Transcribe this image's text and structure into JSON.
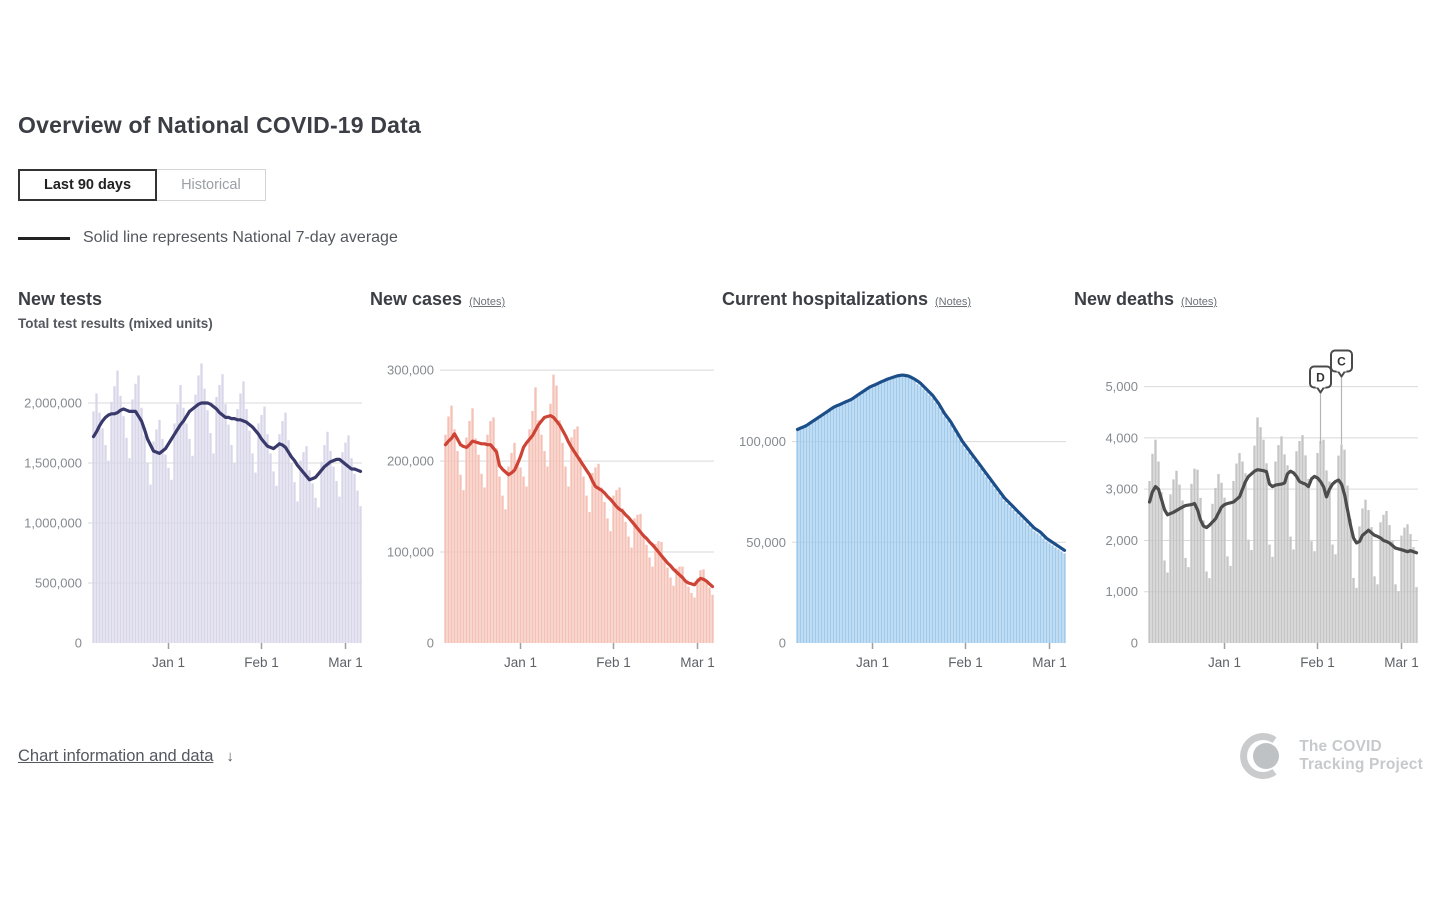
{
  "page": {
    "title": "Overview of National COVID-19 Data"
  },
  "tabs": [
    {
      "label": "Last 90 days",
      "active": true
    },
    {
      "label": "Historical",
      "active": false
    }
  ],
  "legend": {
    "text": "Solid line represents National 7-day average"
  },
  "footer": {
    "link_label": "Chart information and data",
    "link_arrow": "↓",
    "logo_line1": "The COVID",
    "logo_line2": "Tracking Project"
  },
  "colors": {
    "title_text": "#3b3e44",
    "muted_text": "#54585e",
    "axis_label": "#868b90",
    "x_label": "#5d6268",
    "gridline": "#d9d9d9",
    "tests_bar": "#d8d7e9",
    "tests_line": "#39396b",
    "cases_bar": "#f5c1b7",
    "cases_line": "#cd4335",
    "hosp_bar": "#a1cbec",
    "hosp_line": "#1c4e8a",
    "deaths_bar": "#c5c5c5",
    "deaths_line": "#4c4c4c"
  },
  "chart_data": [
    {
      "type": "bar+line",
      "title": "New tests",
      "subtitle": "Total test results (mixed units)",
      "value_scale": "millions",
      "ylim": [
        0,
        2.35
      ],
      "y_ticks": [
        {
          "value": 0,
          "label": "0"
        },
        {
          "value": 0.5,
          "label": "500,000"
        },
        {
          "value": 1.0,
          "label": "1,000,000"
        },
        {
          "value": 1.5,
          "label": "1,500,000"
        },
        {
          "value": 2.0,
          "label": "2,000,000"
        }
      ],
      "x_ticks": [
        {
          "day": 25,
          "label": "Jan 1"
        },
        {
          "day": 56,
          "label": "Feb 1"
        },
        {
          "day": 84,
          "label": "Mar 1"
        }
      ],
      "bar_color": "#d8d7e9",
      "line_color": "#39396b",
      "series": {
        "daily_bars": [
          1.93,
          2.08,
          1.92,
          1.79,
          1.65,
          1.52,
          2.01,
          2.14,
          2.27,
          2.06,
          1.89,
          1.71,
          1.54,
          2.03,
          2.16,
          2.23,
          1.96,
          1.73,
          1.5,
          1.32,
          1.68,
          1.78,
          1.86,
          1.7,
          1.57,
          1.46,
          1.36,
          1.83,
          1.99,
          2.15,
          1.96,
          1.83,
          1.7,
          1.56,
          2.07,
          2.23,
          2.33,
          2.12,
          1.94,
          1.75,
          1.58,
          2.05,
          2.15,
          2.24,
          1.99,
          1.82,
          1.65,
          1.5,
          1.95,
          2.08,
          2.18,
          1.95,
          1.77,
          1.58,
          1.42,
          1.83,
          1.9,
          1.97,
          1.74,
          1.58,
          1.43,
          1.31,
          1.74,
          1.85,
          1.92,
          1.69,
          1.5,
          1.34,
          1.18,
          1.52,
          1.59,
          1.64,
          1.44,
          1.33,
          1.21,
          1.13,
          1.51,
          1.65,
          1.76,
          1.6,
          1.47,
          1.35,
          1.22,
          1.59,
          1.67,
          1.73,
          1.54,
          1.41,
          1.27,
          1.14
        ],
        "avg_line": [
          1.72,
          1.76,
          1.81,
          1.85,
          1.88,
          1.9,
          1.91,
          1.91,
          1.92,
          1.94,
          1.95,
          1.94,
          1.93,
          1.93,
          1.93,
          1.89,
          1.85,
          1.78,
          1.7,
          1.65,
          1.6,
          1.59,
          1.58,
          1.6,
          1.62,
          1.66,
          1.7,
          1.74,
          1.78,
          1.82,
          1.85,
          1.89,
          1.93,
          1.95,
          1.97,
          1.99,
          2.0,
          2.0,
          2.0,
          1.99,
          1.97,
          1.95,
          1.92,
          1.9,
          1.88,
          1.88,
          1.87,
          1.87,
          1.86,
          1.86,
          1.85,
          1.84,
          1.82,
          1.8,
          1.77,
          1.74,
          1.7,
          1.67,
          1.64,
          1.63,
          1.62,
          1.64,
          1.66,
          1.65,
          1.63,
          1.59,
          1.55,
          1.52,
          1.48,
          1.45,
          1.42,
          1.39,
          1.36,
          1.37,
          1.38,
          1.41,
          1.44,
          1.47,
          1.49,
          1.51,
          1.52,
          1.53,
          1.53,
          1.51,
          1.49,
          1.47,
          1.45,
          1.45,
          1.44,
          1.43
        ]
      },
      "markers": []
    },
    {
      "type": "bar+line",
      "title": "New cases",
      "notes_label": "(Notes)",
      "value_scale": "thousands",
      "ylim": [
        0,
        310
      ],
      "y_ticks": [
        {
          "value": 0,
          "label": "0"
        },
        {
          "value": 100,
          "label": "100,000"
        },
        {
          "value": 200,
          "label": "200,000"
        },
        {
          "value": 300,
          "label": "300,000"
        }
      ],
      "x_ticks": [
        {
          "day": 25,
          "label": "Jan 1"
        },
        {
          "day": 56,
          "label": "Feb 1"
        },
        {
          "day": 84,
          "label": "Mar 1"
        }
      ],
      "bar_color": "#f5c1b7",
      "line_color": "#cd4335",
      "series": {
        "daily_bars": [
          229,
          249,
          261,
          235,
          211,
          185,
          168,
          226,
          244,
          258,
          225,
          207,
          186,
          171,
          229,
          244,
          248,
          214,
          183,
          162,
          147,
          194,
          209,
          220,
          201,
          193,
          183,
          172,
          235,
          255,
          281,
          245,
          229,
          211,
          194,
          263,
          295,
          283,
          245,
          220,
          194,
          172,
          226,
          235,
          238,
          204,
          183,
          162,
          144,
          187,
          193,
          197,
          171,
          155,
          137,
          123,
          162,
          168,
          171,
          148,
          133,
          117,
          105,
          137,
          141,
          142,
          120,
          108,
          94,
          84,
          109,
          112,
          111,
          94,
          83,
          72,
          63,
          82,
          84,
          84,
          69,
          62,
          55,
          50,
          71,
          80,
          81,
          69,
          61,
          53
        ],
        "avg_line": [
          218,
          222,
          225,
          230,
          224,
          218,
          216,
          215,
          218,
          222,
          221,
          220,
          219,
          219,
          218,
          218,
          214,
          210,
          195,
          191,
          188,
          185,
          187,
          190,
          197,
          205,
          215,
          220,
          224,
          228,
          234,
          240,
          244,
          248,
          249,
          250,
          248,
          244,
          240,
          234,
          228,
          221,
          215,
          210,
          205,
          200,
          195,
          190,
          185,
          178,
          172,
          170,
          168,
          165,
          161,
          158,
          154,
          150,
          147,
          145,
          141,
          138,
          134,
          130,
          126,
          122,
          118,
          115,
          111,
          108,
          104,
          100,
          96,
          92,
          88,
          85,
          81,
          78,
          75,
          72,
          68,
          66,
          65,
          64,
          68,
          71,
          70,
          68,
          65,
          62
        ]
      },
      "markers": []
    },
    {
      "type": "bar+line",
      "title": "Current hospitalizations",
      "notes_label": "(Notes)",
      "value_scale": "thousands",
      "ylim": [
        0,
        140
      ],
      "y_ticks": [
        {
          "value": 0,
          "label": "0"
        },
        {
          "value": 50,
          "label": "50,000"
        },
        {
          "value": 100,
          "label": "100,000"
        }
      ],
      "x_ticks": [
        {
          "day": 25,
          "label": "Jan 1"
        },
        {
          "day": 56,
          "label": "Feb 1"
        },
        {
          "day": 84,
          "label": "Mar 1"
        }
      ],
      "bar_color": "#a1cbec",
      "line_color": "#1c4e8a",
      "series": {
        "daily_bars": [
          106.3,
          105.9,
          107.6,
          107.2,
          109.3,
          109.2,
          111.3,
          111.2,
          113.3,
          113.2,
          115.3,
          115.2,
          117.3,
          116.9,
          118.6,
          118.2,
          120.0,
          119.5,
          121.3,
          121.2,
          123.3,
          123.2,
          125.3,
          125.2,
          127.3,
          126.9,
          128.6,
          128.2,
          130.0,
          129.5,
          131.3,
          130.7,
          132.3,
          131.7,
          133.1,
          132.2,
          133.1,
          131.7,
          132.1,
          130.2,
          128.5,
          127.5,
          126.0,
          124.5,
          123.0,
          121.5,
          119.5,
          117.5,
          115.0,
          112.5,
          110.5,
          108.5,
          106.0,
          103.5,
          101.0,
          98.5,
          96.5,
          94.5,
          92.5,
          90.5,
          88.5,
          86.5,
          84.5,
          82.5,
          80.5,
          78.5,
          76.5,
          74.5,
          72.5,
          70.5,
          69.0,
          67.5,
          66.0,
          64.5,
          63.0,
          61.5,
          60.0,
          58.5,
          57.0,
          55.5,
          54.5,
          53.5,
          52.0,
          50.5,
          49.5,
          48.5,
          47.5,
          46.5,
          45.5,
          44.5
        ],
        "avg_line": [
          106,
          106.7,
          107.3,
          108,
          109,
          110,
          111,
          112,
          113,
          114,
          115,
          116,
          117,
          117.7,
          118.3,
          119,
          119.7,
          120.3,
          121,
          122,
          123,
          124,
          125,
          126,
          127,
          127.7,
          128.3,
          129,
          129.7,
          130.3,
          131,
          131.5,
          132,
          132.5,
          132.8,
          133,
          132.8,
          132.5,
          131.8,
          131,
          130,
          129,
          127.5,
          126,
          124.5,
          123,
          121,
          119,
          116.5,
          114,
          112,
          110,
          107.5,
          105,
          102.5,
          100,
          98,
          96,
          94,
          92,
          90,
          88,
          86,
          84,
          82,
          80,
          78,
          76,
          74,
          72,
          70.5,
          69,
          67.5,
          66,
          64.5,
          63,
          61.5,
          60,
          58.5,
          57,
          56,
          55,
          53.5,
          52,
          51,
          50,
          49,
          48,
          47,
          46
        ]
      },
      "markers": []
    },
    {
      "type": "bar+line",
      "title": "New deaths",
      "notes_label": "(Notes)",
      "value_scale": "count",
      "ylim": [
        0,
        5500
      ],
      "y_ticks": [
        {
          "value": 0,
          "label": "0"
        },
        {
          "value": 1000,
          "label": "1,000"
        },
        {
          "value": 2000,
          "label": "2,000"
        },
        {
          "value": 3000,
          "label": "3,000"
        },
        {
          "value": 4000,
          "label": "4,000"
        },
        {
          "value": 5000,
          "label": "5,000"
        }
      ],
      "x_ticks": [
        {
          "day": 25,
          "label": "Jan 1"
        },
        {
          "day": 56,
          "label": "Feb 1"
        },
        {
          "day": 84,
          "label": "Mar 1"
        }
      ],
      "bar_color": "#c5c5c5",
      "line_color": "#4c4c4c",
      "series": {
        "daily_bars": [
          3160,
          3690,
          3965,
          3540,
          2940,
          1610,
          1375,
          2900,
          3190,
          3360,
          3090,
          2780,
          1660,
          1480,
          3105,
          3400,
          3380,
          2830,
          2390,
          1395,
          1265,
          2715,
          3025,
          3295,
          3125,
          2835,
          1690,
          1505,
          3160,
          3500,
          3705,
          3540,
          3310,
          2015,
          1815,
          3850,
          4400,
          4210,
          3965,
          3505,
          1920,
          1680,
          3540,
          3860,
          4030,
          3680,
          3465,
          2075,
          1825,
          3740,
          3940,
          4055,
          3660,
          3200,
          1985,
          1790,
          3705,
          3940,
          3965,
          3365,
          3150,
          1920,
          1730,
          3655,
          3875,
          3770,
          3070,
          2415,
          1270,
          1075,
          2275,
          2625,
          2795,
          2595,
          2260,
          1300,
          1145,
          2355,
          2500,
          2575,
          2300,
          1995,
          1145,
          1010,
          2095,
          2250,
          2315,
          2125,
          1870,
          1090
        ],
        "avg_line": [
          2750,
          2950,
          3050,
          3000,
          2800,
          2600,
          2500,
          2525,
          2550,
          2585,
          2620,
          2650,
          2680,
          2690,
          2700,
          2720,
          2600,
          2400,
          2280,
          2250,
          2300,
          2360,
          2420,
          2535,
          2650,
          2700,
          2720,
          2735,
          2750,
          2800,
          2850,
          3000,
          3150,
          3250,
          3300,
          3350,
          3380,
          3370,
          3360,
          3340,
          3100,
          3050,
          3080,
          3090,
          3100,
          3120,
          3300,
          3350,
          3320,
          3250,
          3150,
          3120,
          3100,
          3050,
          3200,
          3250,
          3220,
          3150,
          3050,
          2850,
          3000,
          3100,
          3150,
          3180,
          3100,
          2900,
          2600,
          2300,
          2050,
          1950,
          1980,
          2100,
          2150,
          2200,
          2150,
          2100,
          2080,
          2050,
          2000,
          1980,
          1950,
          1900,
          1850,
          1835,
          1820,
          1800,
          1780,
          1800,
          1780,
          1760
        ]
      },
      "markers": [
        {
          "label": "D",
          "day": 57
        },
        {
          "label": "C",
          "day": 64
        }
      ]
    }
  ]
}
